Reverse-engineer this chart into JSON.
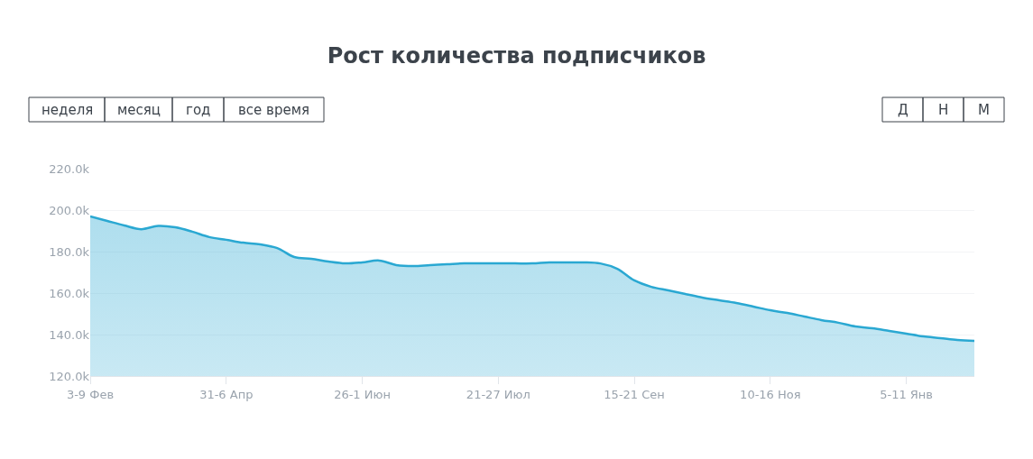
{
  "chart_data": {
    "type": "area",
    "title": "Рост количества подписчиков",
    "annotations": [
      "неделя",
      "месяц",
      "год",
      "все время",
      "Д",
      "Н",
      "М"
    ],
    "categories": [
      "3-9 Фев",
      null,
      null,
      null,
      null,
      null,
      null,
      null,
      "31-6 Апр",
      null,
      null,
      null,
      null,
      null,
      null,
      null,
      "26-1 Июн",
      null,
      null,
      null,
      null,
      null,
      null,
      null,
      "21-27 Июл",
      null,
      null,
      null,
      null,
      null,
      null,
      null,
      "15-21 Сен",
      null,
      null,
      null,
      null,
      null,
      null,
      null,
      "10-16 Ноя",
      null,
      null,
      null,
      null,
      null,
      null,
      null,
      "5-11 Янв",
      null,
      null,
      null,
      null
    ],
    "series": [
      {
        "color": "#2aa8d2",
        "values": [
          197000,
          194800,
          192600,
          190800,
          192400,
          191700,
          189600,
          187000,
          185700,
          184300,
          183500,
          181700,
          177400,
          176500,
          175200,
          174300,
          174800,
          175700,
          173500,
          173000,
          173500,
          173900,
          174300,
          174300,
          174300,
          174300,
          174300,
          174800,
          174800,
          174800,
          174300,
          171700,
          166100,
          163000,
          161300,
          159600,
          157800,
          156500,
          155200,
          153500,
          151700,
          150400,
          148700,
          147000,
          145700,
          143900,
          143000,
          141700,
          140400,
          139100,
          138300,
          137400,
          137000
        ]
      }
    ],
    "ylim": [
      120000,
      220000
    ],
    "yticks": [
      {
        "value": 120000,
        "label": "120.0k"
      },
      {
        "value": 140000,
        "label": "140.0k"
      },
      {
        "value": 160000,
        "label": "160.0k"
      },
      {
        "value": 180000,
        "label": "180.0k"
      },
      {
        "value": 200000,
        "label": "200.0k"
      },
      {
        "value": 220000,
        "label": "220.0k"
      }
    ],
    "grid": "y"
  }
}
